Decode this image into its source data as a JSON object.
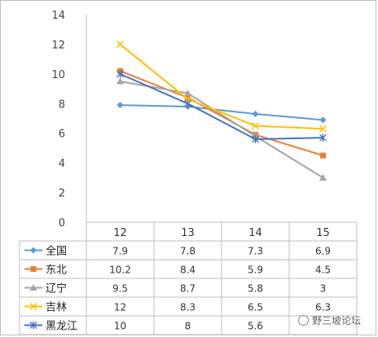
{
  "chart_data": {
    "type": "line",
    "categories": [
      "12",
      "13",
      "14",
      "15"
    ],
    "ylim": [
      0,
      14
    ],
    "yticks": [
      "0",
      "2",
      "4",
      "6",
      "8",
      "10",
      "12",
      "14"
    ],
    "series": [
      {
        "name": "全国",
        "values": [
          7.9,
          7.8,
          7.3,
          6.9
        ],
        "labels": [
          "7.9",
          "7.8",
          "7.3",
          "6.9"
        ],
        "color": "#5b9bd5",
        "marker": "diamond"
      },
      {
        "name": "东北",
        "values": [
          10.2,
          8.4,
          5.9,
          4.5
        ],
        "labels": [
          "10.2",
          "8.4",
          "5.9",
          "4.5"
        ],
        "color": "#ed7d31",
        "marker": "square"
      },
      {
        "name": "辽宁",
        "values": [
          9.5,
          8.7,
          5.8,
          3
        ],
        "labels": [
          "9.5",
          "8.7",
          "5.8",
          "3"
        ],
        "color": "#a5a5a5",
        "marker": "triangle"
      },
      {
        "name": "吉林",
        "values": [
          12,
          8.3,
          6.5,
          6.3
        ],
        "labels": [
          "12",
          "8.3",
          "6.5",
          "6.3"
        ],
        "color": "#ffc000",
        "marker": "x"
      },
      {
        "name": "黑龙江",
        "values": [
          10,
          8,
          5.6,
          5.7
        ],
        "labels": [
          "10",
          "8",
          "5.6",
          ""
        ],
        "color": "#4472c4",
        "marker": "star"
      }
    ],
    "legend": "data-table-left",
    "grid": false
  },
  "watermark": {
    "text": "野三坡论坛",
    "icon": "wechat-icon"
  }
}
